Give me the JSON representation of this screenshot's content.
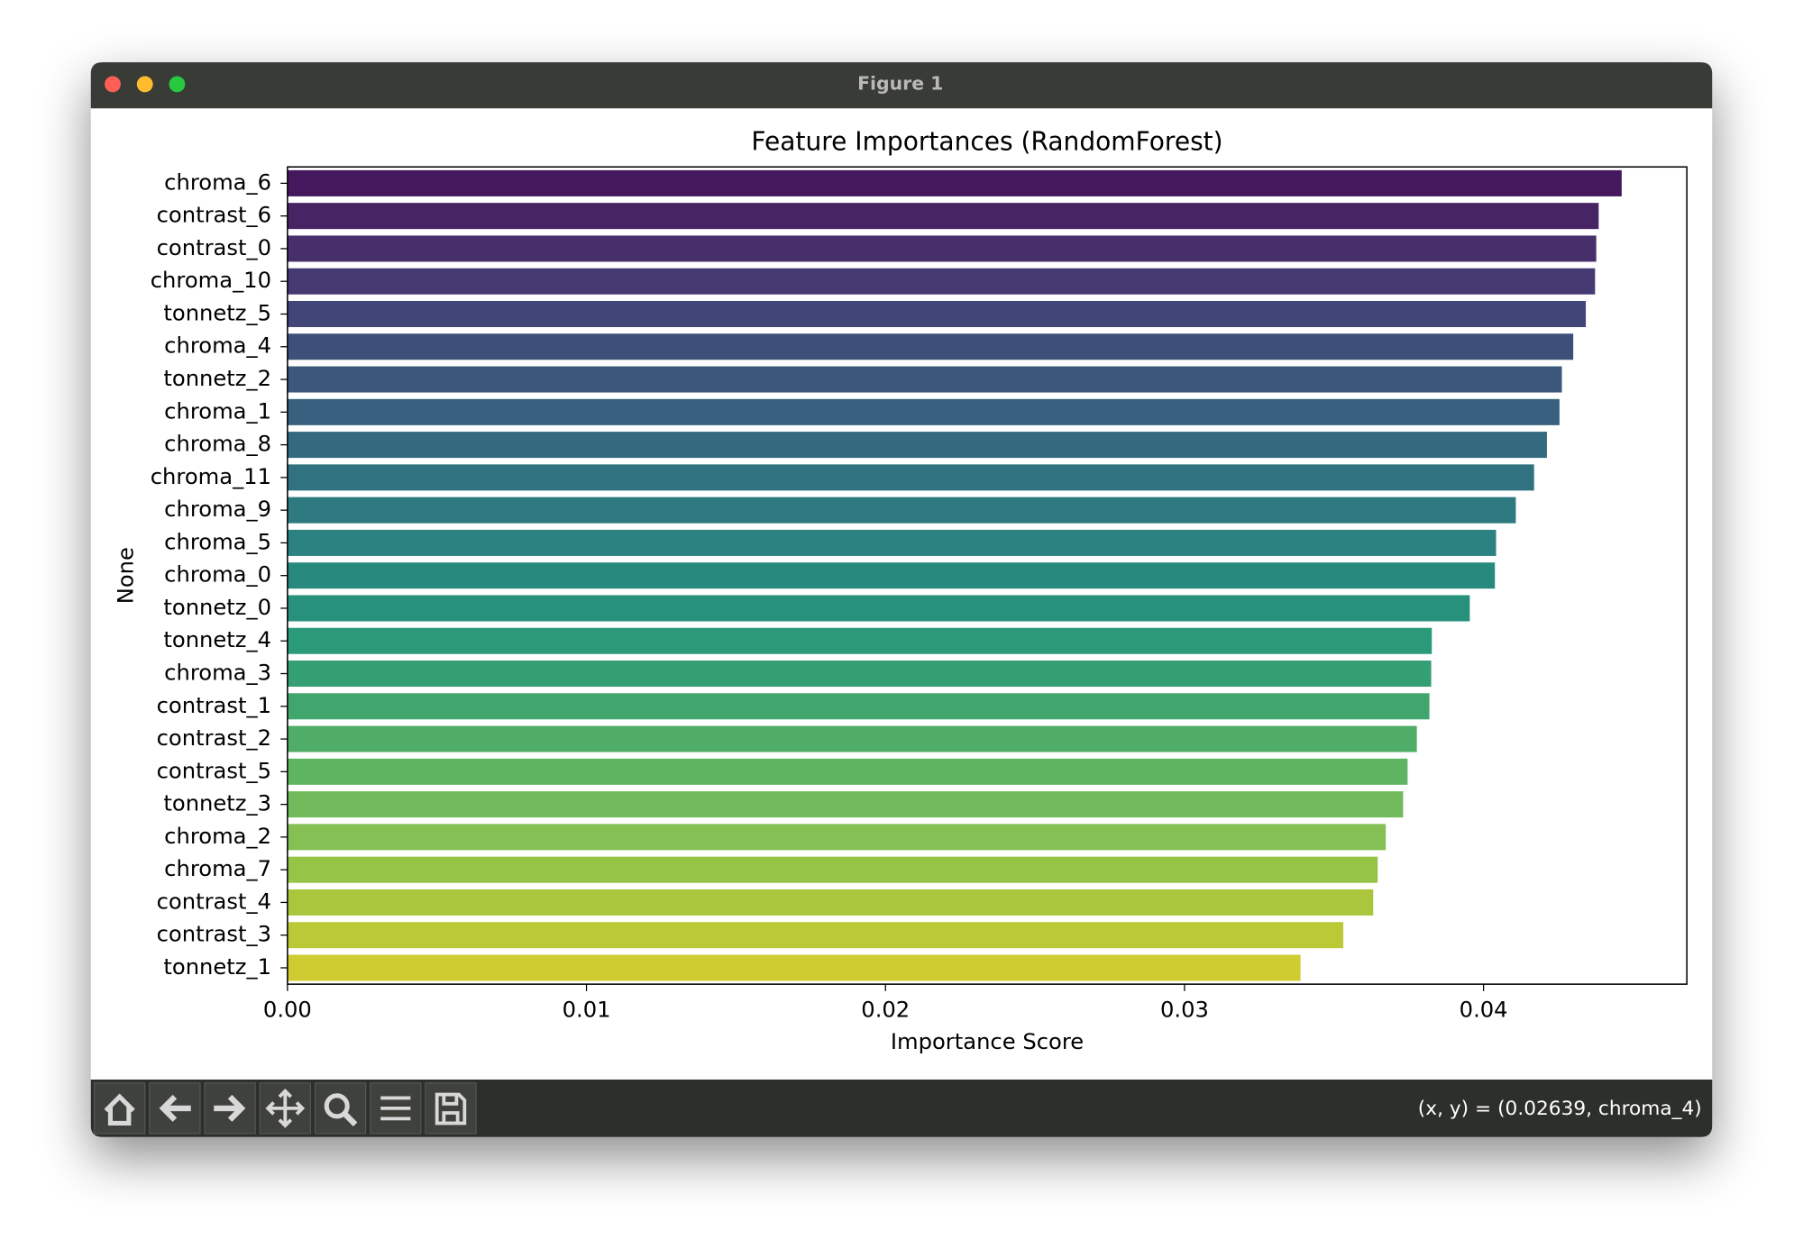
{
  "window_title": "Figure 1",
  "status": "(x, y) = (0.02639, chroma_4)",
  "chart_data": {
    "type": "barh",
    "title": "Feature Importances (RandomForest)",
    "xlabel": "Importance Score",
    "ylabel": "None",
    "categories": [
      "chroma_6",
      "contrast_6",
      "contrast_0",
      "chroma_10",
      "tonnetz_5",
      "chroma_4",
      "tonnetz_2",
      "chroma_1",
      "chroma_8",
      "chroma_11",
      "chroma_9",
      "chroma_5",
      "chroma_0",
      "tonnetz_0",
      "tonnetz_4",
      "chroma_3",
      "contrast_1",
      "contrast_2",
      "contrast_5",
      "tonnetz_3",
      "chroma_2",
      "chroma_7",
      "contrast_4",
      "contrast_3",
      "tonnetz_1"
    ],
    "values": [
      0.04462,
      0.04385,
      0.04377,
      0.04373,
      0.04342,
      0.043,
      0.04262,
      0.04254,
      0.04212,
      0.04169,
      0.04108,
      0.04042,
      0.04038,
      0.03954,
      0.03827,
      0.03825,
      0.03819,
      0.03777,
      0.03746,
      0.03731,
      0.03673,
      0.03646,
      0.03631,
      0.03531,
      0.03388
    ],
    "colors": [
      "#45175c",
      "#472463",
      "#472f6b",
      "#453a72",
      "#424577",
      "#3e4f7a",
      "#3b587c",
      "#37617e",
      "#346a7f",
      "#317280",
      "#2e7a80",
      "#2b8280",
      "#288a7f",
      "#27917c",
      "#2a9a78",
      "#339f73",
      "#40a66e",
      "#4fad68",
      "#5fb462",
      "#71ba5c",
      "#84c053",
      "#96c446",
      "#a9c63d",
      "#bcc937",
      "#cfcc31"
    ],
    "xlim": [
      0,
      0.0468
    ],
    "xticks": [
      {
        "value": 0,
        "label": "0.00"
      },
      0.01,
      0.02,
      0.03,
      0.04
    ]
  }
}
